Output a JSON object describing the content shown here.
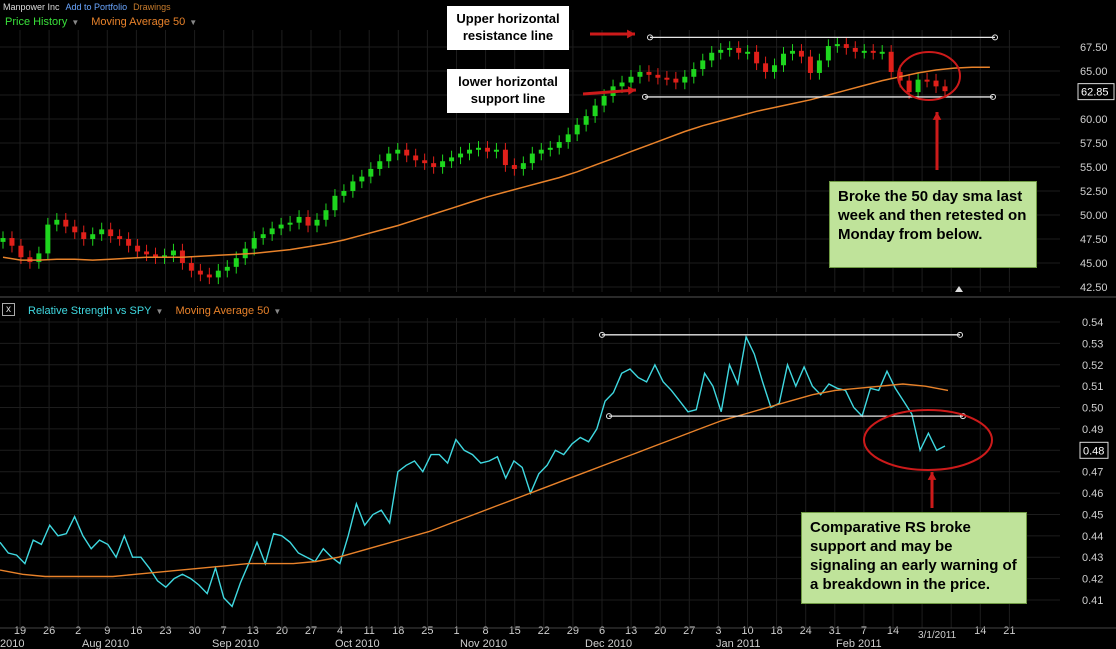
{
  "header": {
    "title": "Manpower Inc",
    "add_link": "Add to Portfolio",
    "drawings_link": "Drawings"
  },
  "price_panel": {
    "legend_price": "Price History",
    "legend_ma": "Moving Average 50",
    "current_value": "62.85",
    "y_ticks": [
      "67.50",
      "65.00",
      "62.50",
      "60.00",
      "57.50",
      "55.00",
      "52.50",
      "50.00",
      "47.50",
      "45.00",
      "42.50"
    ],
    "box_upper": "Upper horizontal resistance line",
    "box_lower": "lower horizontal support line",
    "note": "Broke the 50 day sma last week and then retested on Monday from below."
  },
  "rs_panel": {
    "legend_rs": "Relative Strength vs SPY",
    "legend_ma": "Moving Average 50",
    "current_value": "0.48",
    "y_ticks": [
      "0.54",
      "0.53",
      "0.52",
      "0.51",
      "0.50",
      "0.49",
      "0.48",
      "0.47",
      "0.46",
      "0.45",
      "0.44",
      "0.43",
      "0.42",
      "0.41"
    ],
    "note": "Comparative RS broke support and may be signaling an early warning of a breakdown in the price."
  },
  "x_axis": {
    "day_ticks": [
      "19",
      "26",
      "2",
      "9",
      "16",
      "23",
      "30",
      "7",
      "13",
      "20",
      "27",
      "4",
      "11",
      "18",
      "25",
      "1",
      "8",
      "15",
      "22",
      "29",
      "6",
      "13",
      "20",
      "27",
      "3",
      "10",
      "18",
      "24",
      "31",
      "7",
      "14",
      "",
      "",
      "14",
      "21"
    ],
    "month_labels": [
      "2010",
      "Aug 2010",
      "Sep 2010",
      "Oct 2010",
      "Nov 2010",
      "Dec 2010",
      "Jan 2011",
      "Feb 2011"
    ],
    "special_date": "3/1/2011"
  },
  "colors": {
    "up": "#1ed61e",
    "down": "#e0201a",
    "ma": "#e8822a",
    "rs": "#3fd8e0",
    "guide": "#e6e6e6",
    "annot": "#cc1a1a",
    "note_bg": "#bfe39a"
  },
  "chart_data": [
    {
      "type": "line",
      "title": "Manpower Inc",
      "ylabel": "",
      "ylim": [
        42.5,
        68.5
      ],
      "series": [
        {
          "name": "Price History",
          "values": [
            47.6,
            46.8,
            45.6,
            45.1,
            46.0,
            49.0,
            49.5,
            48.8,
            48.2,
            47.5,
            48.0,
            48.5,
            47.8,
            47.5,
            46.8,
            46.2,
            45.9,
            45.6,
            45.8,
            46.3,
            45.0,
            44.2,
            43.8,
            43.5,
            44.2,
            44.6,
            45.5,
            46.5,
            47.6,
            48.0,
            48.6,
            49.0,
            49.2,
            49.8,
            48.9,
            49.5,
            50.5,
            52.0,
            52.5,
            53.5,
            54.0,
            54.8,
            55.6,
            56.4,
            56.8,
            56.2,
            55.7,
            55.4,
            55.0,
            55.6,
            56.0,
            56.4,
            56.8,
            57.0,
            56.6,
            56.8,
            55.2,
            54.8,
            55.4,
            56.4,
            56.8,
            57.0,
            57.6,
            58.4,
            59.4,
            60.3,
            61.4,
            62.4,
            63.4,
            63.8,
            64.4,
            64.9,
            64.6,
            64.3,
            64.2,
            63.8,
            64.4,
            65.2,
            66.1,
            66.9,
            67.2,
            67.4,
            66.9,
            67.0,
            65.8,
            64.9,
            65.6,
            66.8,
            67.1,
            66.5,
            64.8,
            66.1,
            67.6,
            67.8,
            67.4,
            67.0,
            67.1,
            66.9,
            67.0,
            64.9,
            64.0,
            62.8,
            64.1,
            64.0,
            63.4,
            62.9
          ]
        },
        {
          "name": "Moving Average 50",
          "values": [
            45.6,
            45.3,
            45.3,
            45.4,
            45.4,
            45.3,
            45.4,
            45.5,
            45.6,
            45.6,
            45.6,
            45.7,
            45.8,
            45.9,
            46.0,
            46.2,
            46.4,
            46.7,
            47.0,
            47.4,
            47.9,
            48.4,
            48.9,
            49.5,
            50.1,
            50.7,
            51.3,
            51.9,
            52.4,
            52.9,
            53.4,
            53.9,
            54.5,
            55.2,
            55.9,
            56.6,
            57.3,
            58.0,
            58.7,
            59.3,
            59.8,
            60.3,
            60.8,
            61.2,
            61.6,
            62.0,
            62.5,
            63.0,
            63.5,
            64.0,
            64.4,
            64.8,
            65.1,
            65.3,
            65.4,
            65.4
          ]
        }
      ],
      "annotations": [
        "Upper horizontal resistance line",
        "lower horizontal support line",
        "Broke the 50 day sma last week and then retested on Monday from below."
      ]
    },
    {
      "type": "line",
      "title": "Relative Strength vs SPY",
      "ylim": [
        0.405,
        0.545
      ],
      "series": [
        {
          "name": "Relative Strength vs SPY",
          "values": [
            0.437,
            0.432,
            0.431,
            0.427,
            0.438,
            0.436,
            0.445,
            0.44,
            0.441,
            0.449,
            0.44,
            0.434,
            0.438,
            0.436,
            0.43,
            0.44,
            0.43,
            0.43,
            0.425,
            0.419,
            0.416,
            0.42,
            0.422,
            0.42,
            0.417,
            0.413,
            0.425,
            0.411,
            0.407,
            0.418,
            0.427,
            0.437,
            0.427,
            0.441,
            0.44,
            0.437,
            0.432,
            0.43,
            0.428,
            0.434,
            0.43,
            0.427,
            0.44,
            0.455,
            0.445,
            0.45,
            0.452,
            0.446,
            0.47,
            0.473,
            0.475,
            0.47,
            0.478,
            0.478,
            0.474,
            0.485,
            0.48,
            0.478,
            0.474,
            0.475,
            0.477,
            0.467,
            0.475,
            0.472,
            0.46,
            0.469,
            0.473,
            0.48,
            0.478,
            0.483,
            0.486,
            0.484,
            0.49,
            0.503,
            0.507,
            0.516,
            0.518,
            0.514,
            0.512,
            0.52,
            0.512,
            0.508,
            0.503,
            0.498,
            0.499,
            0.516,
            0.51,
            0.498,
            0.52,
            0.511,
            0.533,
            0.525,
            0.512,
            0.5,
            0.502,
            0.52,
            0.51,
            0.519,
            0.51,
            0.506,
            0.511,
            0.509,
            0.508,
            0.5,
            0.496,
            0.509,
            0.508,
            0.517,
            0.509,
            0.503,
            0.497,
            0.48,
            0.488,
            0.48,
            0.482
          ]
        },
        {
          "name": "Moving Average 50",
          "values": [
            0.424,
            0.422,
            0.421,
            0.421,
            0.421,
            0.421,
            0.422,
            0.423,
            0.424,
            0.425,
            0.426,
            0.427,
            0.427,
            0.427,
            0.428,
            0.43,
            0.433,
            0.436,
            0.439,
            0.442,
            0.446,
            0.45,
            0.454,
            0.458,
            0.462,
            0.466,
            0.47,
            0.474,
            0.478,
            0.482,
            0.486,
            0.49,
            0.494,
            0.497,
            0.5,
            0.503,
            0.506,
            0.508,
            0.509,
            0.51,
            0.511,
            0.51,
            0.508
          ]
        }
      ],
      "annotations": [
        "Comparative RS broke support and may be signaling an early warning of a breakdown in the price."
      ]
    }
  ]
}
